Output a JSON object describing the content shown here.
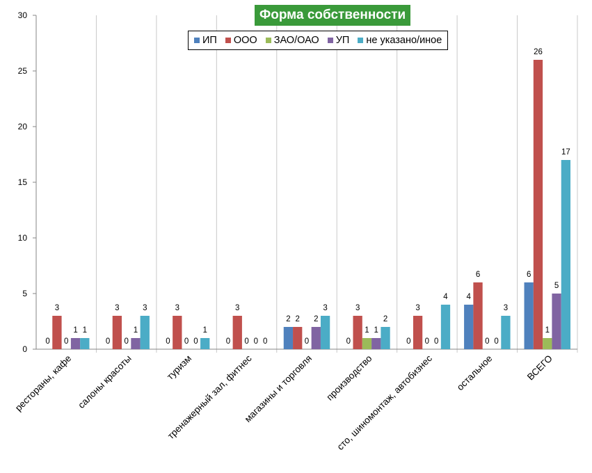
{
  "chart_data": {
    "type": "bar",
    "title": "Форма собственности",
    "categories": [
      "рестораны, кафе",
      "салоны красоты",
      "туризм",
      "тренажерный зал, фитнес",
      "магазины и торговля",
      "производство",
      "сто, шиномонтаж, автобизнес",
      "остальное",
      "ВСЕГО"
    ],
    "series": [
      {
        "name": "ИП",
        "color": "#4f81bd",
        "values": [
          0,
          0,
          0,
          0,
          2,
          0,
          0,
          4,
          6
        ]
      },
      {
        "name": "ООО",
        "color": "#c0504d",
        "values": [
          3,
          3,
          3,
          3,
          2,
          3,
          3,
          6,
          26
        ]
      },
      {
        "name": "ЗАО/ОАО",
        "color": "#9bbb59",
        "values": [
          0,
          0,
          0,
          0,
          0,
          1,
          0,
          0,
          1
        ]
      },
      {
        "name": "УП",
        "color": "#8064a2",
        "values": [
          1,
          1,
          0,
          0,
          2,
          1,
          0,
          0,
          5
        ]
      },
      {
        "name": "не указано/иное",
        "color": "#4bacc6",
        "values": [
          1,
          3,
          1,
          0,
          3,
          2,
          4,
          3,
          17
        ]
      }
    ],
    "ylim": [
      0,
      30
    ],
    "yticks": [
      0,
      5,
      10,
      15,
      20,
      25,
      30
    ],
    "grid": "vertical category separators",
    "legend_position": "top"
  }
}
